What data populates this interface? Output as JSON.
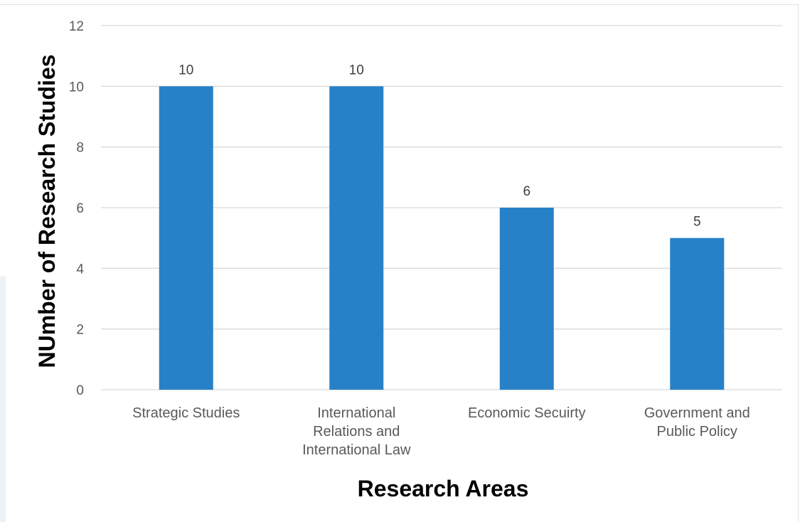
{
  "chart_data": {
    "type": "bar",
    "title": "",
    "xlabel": "Research Areas",
    "ylabel": "NUmber of Research Studies",
    "categories": [
      [
        "Strategic Studies"
      ],
      [
        "International",
        "Relations and",
        "International Law"
      ],
      [
        "Economic Secuirty"
      ],
      [
        "Government and",
        "Public Policy"
      ]
    ],
    "values": [
      10,
      10,
      6,
      5
    ],
    "data_labels": [
      "10",
      "10",
      "6",
      "5"
    ],
    "ylim": [
      0,
      12
    ],
    "yticks": [
      0,
      2,
      4,
      6,
      8,
      10,
      12
    ],
    "grid": true,
    "legend": "none",
    "bar_color": "#2781c8",
    "grid_color": "#d9d9d9"
  }
}
